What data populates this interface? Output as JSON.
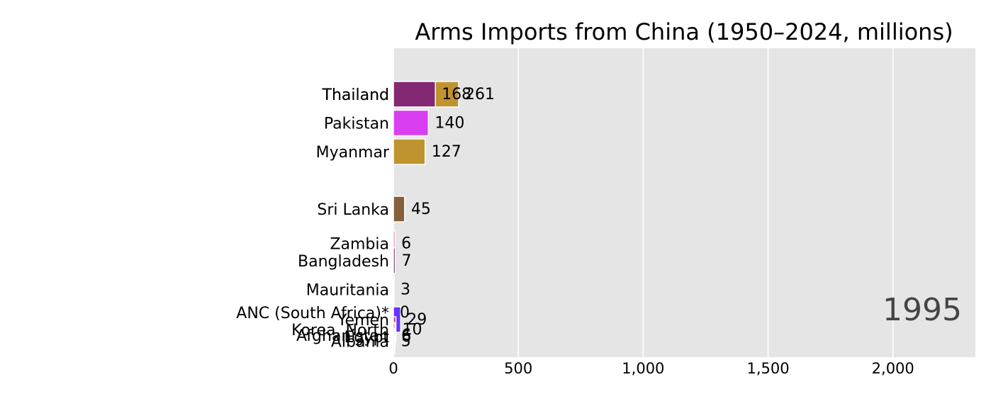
{
  "chart_data": {
    "type": "bar",
    "orientation": "horizontal",
    "title": "Arms Imports from China (1950–2024, millions)",
    "period_label": "1995",
    "xlim": [
      0,
      2330
    ],
    "x_ticks": [
      0,
      500,
      1000,
      1500,
      2000
    ],
    "x_tick_labels": [
      "0",
      "500",
      "1,000",
      "1,500",
      "2,000"
    ],
    "grid": true,
    "xlabel": "",
    "ylabel": "",
    "background": "#e5e5e5",
    "bars": [
      {
        "label": "Thailand",
        "value": 261,
        "rank": 1.0,
        "color": "#bf9430"
      },
      {
        "label": "Thailand",
        "value": 168,
        "rank": 1.0,
        "color": "#832873"
      },
      {
        "label": "Pakistan",
        "value": 140,
        "rank": 2.0,
        "color": "#d93ef0"
      },
      {
        "label": "Myanmar",
        "value": 127,
        "rank": 3.0,
        "color": "#bf9430"
      },
      {
        "label": "Sri Lanka",
        "value": 45,
        "rank": 5.0,
        "color": "#86603c"
      },
      {
        "label": "Zambia",
        "value": 6,
        "rank": 6.2,
        "color": "#c2308f"
      },
      {
        "label": "Bangladesh",
        "value": 7,
        "rank": 6.8,
        "color": "#7e1e57"
      },
      {
        "label": "Mauritania",
        "value": 3,
        "rank": 7.8,
        "color": "#d9d9d9"
      },
      {
        "label": "ANC (South Africa)*",
        "value": 0,
        "rank": 8.6,
        "color": "#ff66cc"
      },
      {
        "label": "Yemen",
        "value": 29,
        "rank": 8.85,
        "color": "#6633ff"
      },
      {
        "label": "Korea, North",
        "value": 10,
        "rank": 9.2,
        "color": "#cc3366"
      },
      {
        "label": "Afghanistan",
        "value": 6,
        "rank": 9.4,
        "color": "#cc3399"
      },
      {
        "label": "Egypt",
        "value": 6,
        "rank": 9.45,
        "color": "#993366"
      },
      {
        "label": "Albania",
        "value": 5,
        "rank": 9.6,
        "color": "#d9d9d9"
      }
    ]
  }
}
